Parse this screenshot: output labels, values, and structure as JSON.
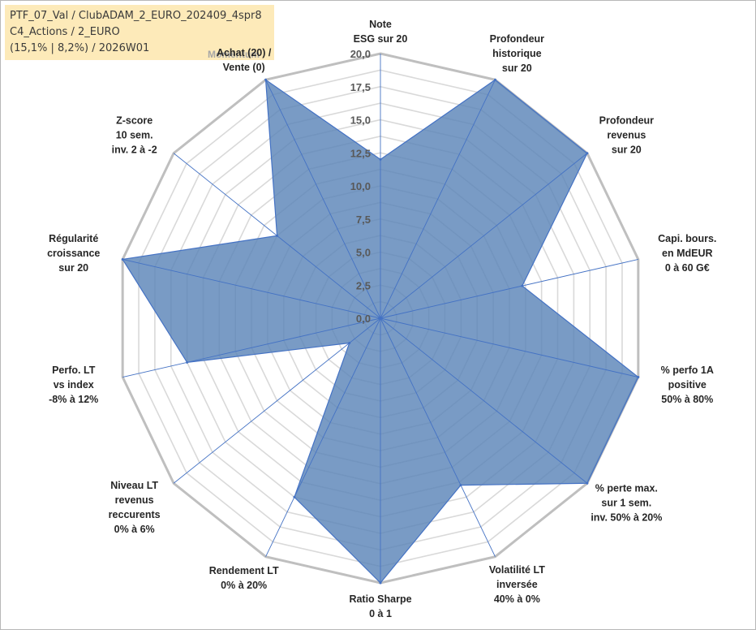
{
  "header": {
    "line1": "PTF_07_Val / ClubADAM_2_EURO_202409_4spr8",
    "line2": "C4_Actions / 2_EURO",
    "line3": "(15,1% | 8,2%) / 2026W01",
    "momentum_label": "Momentum"
  },
  "colors": {
    "fill": "#5b85b8",
    "line": "#4472c4",
    "grid_outer": "#bfbfbf",
    "grid_inner": "#d9d9d9",
    "header_bg": "#fdeab9"
  },
  "chart_data": {
    "type": "radar",
    "range": [
      0,
      20
    ],
    "ticks": [
      "0,0",
      "2,5",
      "5,0",
      "7,5",
      "10,0",
      "12,5",
      "15,0",
      "17,5",
      "20,0"
    ],
    "axes": [
      {
        "label": [
          "Note",
          "ESG sur 20"
        ],
        "value": 12
      },
      {
        "label": [
          "Profondeur",
          "historique",
          "sur 20"
        ],
        "value": 20
      },
      {
        "label": [
          "Profondeur",
          "revenus",
          "sur 20"
        ],
        "value": 20
      },
      {
        "label": [
          "Capi. bours.",
          "en MdEUR",
          "0 à 60 G€"
        ],
        "value": 11
      },
      {
        "label": [
          "% perfo 1A",
          "positive",
          "50% à 80%"
        ],
        "value": 20
      },
      {
        "label": [
          "% perte max.",
          "sur 1 sem.",
          "inv. 50% à 20%"
        ],
        "value": 20
      },
      {
        "label": [
          "Volatilité LT",
          "inversée",
          "40% à 0%"
        ],
        "value": 14
      },
      {
        "label": [
          "Ratio Sharpe",
          "0 à 1"
        ],
        "value": 20
      },
      {
        "label": [
          "Rendement LT",
          "0% à 20%"
        ],
        "value": 15
      },
      {
        "label": [
          "Niveau LT",
          "revenus",
          "reccurents",
          "0% à 6%"
        ],
        "value": 3
      },
      {
        "label": [
          "Perfo. LT",
          "vs index",
          "-8% à 12%"
        ],
        "value": 15
      },
      {
        "label": [
          "Régularité",
          "croissance",
          "sur 20"
        ],
        "value": 20
      },
      {
        "label": [
          "Z-score",
          "10 sem.",
          "inv. 2 à -2"
        ],
        "value": 10
      },
      {
        "label": [
          "Achat (20) /",
          "Vente (0)"
        ],
        "value": 20
      }
    ]
  }
}
